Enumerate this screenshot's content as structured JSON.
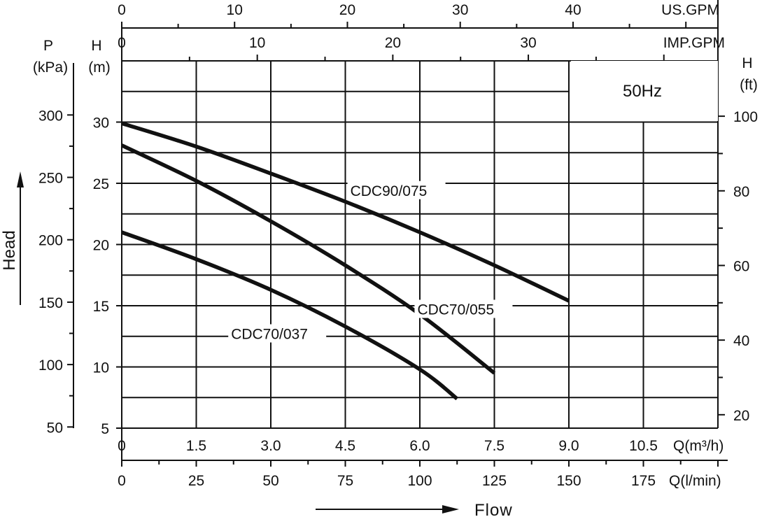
{
  "chart_data": {
    "type": "line",
    "title": "",
    "annotation": "50Hz",
    "xlabel": "Flow",
    "ylabel": "Head",
    "xlim": [
      0,
      12
    ],
    "ylim": [
      5,
      35
    ],
    "x_axis_primary": {
      "unit": "Q(m³/h)",
      "ticks": [
        "0",
        "1.5",
        "3.0",
        "4.5",
        "6.0",
        "7.5",
        "9.0",
        "10.5"
      ]
    },
    "x_axis_lmin": {
      "unit": "Q(l/min)",
      "ticks": [
        "0",
        "25",
        "50",
        "75",
        "100",
        "125",
        "150",
        "175"
      ]
    },
    "x_axis_usgpm": {
      "unit": "US.GPM",
      "ticks": [
        "0",
        "10",
        "20",
        "30",
        "40"
      ]
    },
    "x_axis_impgpm": {
      "unit": "IMP.GPM",
      "ticks": [
        "0",
        "10",
        "20",
        "30"
      ]
    },
    "y_axis_m": {
      "unit_line1": "H",
      "unit_line2": "(m)",
      "ticks": [
        "5",
        "10",
        "15",
        "20",
        "25",
        "30"
      ]
    },
    "y_axis_kpa": {
      "unit_line1": "P",
      "unit_line2": "(kPa)",
      "ticks": [
        "50",
        "100",
        "150",
        "200",
        "250",
        "300"
      ]
    },
    "y_axis_ft": {
      "unit_line1": "H",
      "unit_line2": "(ft)",
      "ticks": [
        "20",
        "40",
        "60",
        "80",
        "100"
      ]
    },
    "grid": true,
    "series": [
      {
        "name": "CDC90/075",
        "x": [
          0,
          1.5,
          3.0,
          4.5,
          6.0,
          7.5,
          9.0
        ],
        "y": [
          29.9,
          28.0,
          25.8,
          23.5,
          21.0,
          18.3,
          15.4
        ]
      },
      {
        "name": "CDC70/055",
        "x": [
          0,
          1.5,
          3.0,
          4.5,
          6.0,
          7.5
        ],
        "y": [
          28.1,
          25.2,
          21.9,
          18.3,
          14.3,
          9.5
        ]
      },
      {
        "name": "CDC70/037",
        "x": [
          0,
          1.5,
          3.0,
          4.5,
          6.0,
          6.75
        ],
        "y": [
          21.0,
          18.8,
          16.3,
          13.3,
          9.8,
          7.4
        ]
      }
    ]
  }
}
